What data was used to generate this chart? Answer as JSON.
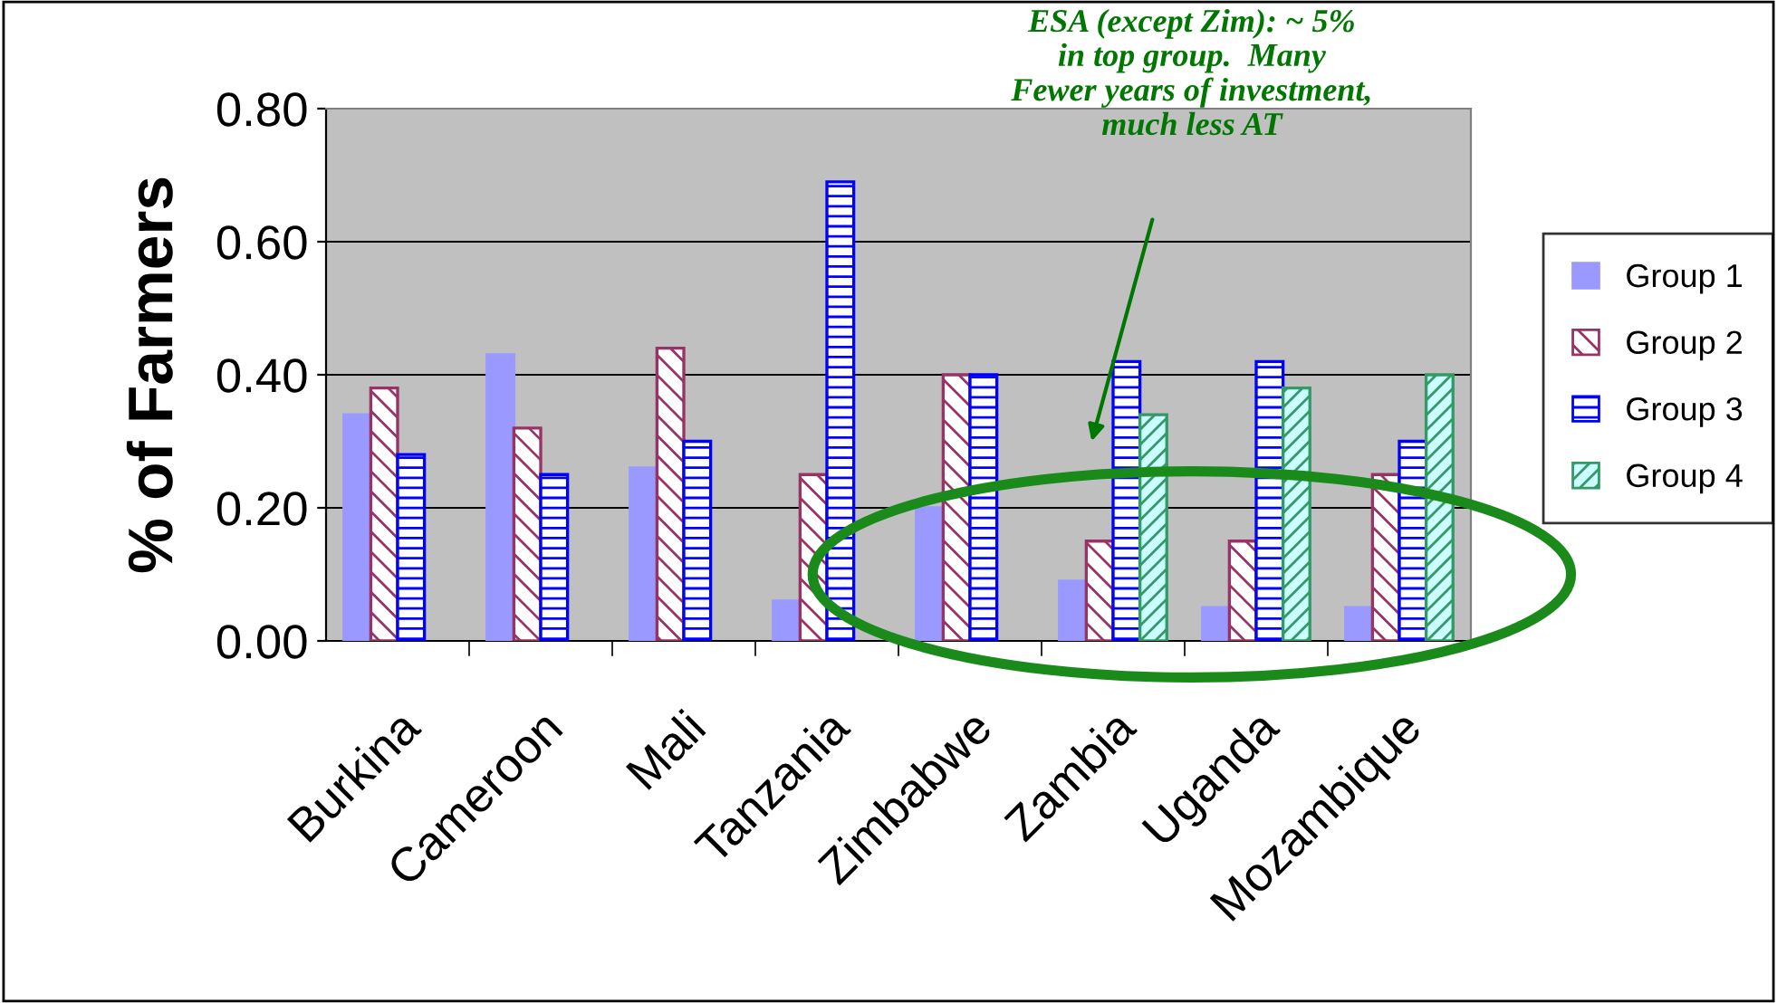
{
  "chart_data": {
    "type": "bar",
    "ylabel": "% of Farmers",
    "categories": [
      "Burkina",
      "Cameroon",
      "Mali",
      "Tanzania",
      "Zimbabwe",
      "Zambia",
      "Uganda",
      "Mozambique"
    ],
    "series": [
      {
        "name": "Group 1",
        "color": "#9999ff",
        "values": [
          0.34,
          0.43,
          0.26,
          0.06,
          0.2,
          0.09,
          0.05,
          0.05
        ]
      },
      {
        "name": "Group 2",
        "color": "#993366",
        "values": [
          0.38,
          0.32,
          0.44,
          0.25,
          0.4,
          0.15,
          0.15,
          0.25
        ]
      },
      {
        "name": "Group 3",
        "color": "#0000ff",
        "values": [
          0.28,
          0.25,
          0.3,
          0.69,
          0.4,
          0.42,
          0.42,
          0.3
        ]
      },
      {
        "name": "Group 4",
        "color": "#339966",
        "values": [
          null,
          null,
          null,
          null,
          null,
          0.34,
          0.38,
          0.4
        ]
      }
    ],
    "ylim": [
      0,
      0.8
    ],
    "yticks": [
      {
        "value": 0,
        "label": "0.00"
      },
      {
        "value": 0.2,
        "label": "0.20"
      },
      {
        "value": 0.4,
        "label": "0.40"
      },
      {
        "value": 0.6,
        "label": "0.60"
      },
      {
        "value": 0.8,
        "label": "0.80"
      }
    ],
    "grid": "y",
    "legend": "right",
    "annotations": [
      "ESA (except Zim): ~ 5%\nin top group.  Many\nFewer years of investment,\nmuch less AT"
    ]
  }
}
